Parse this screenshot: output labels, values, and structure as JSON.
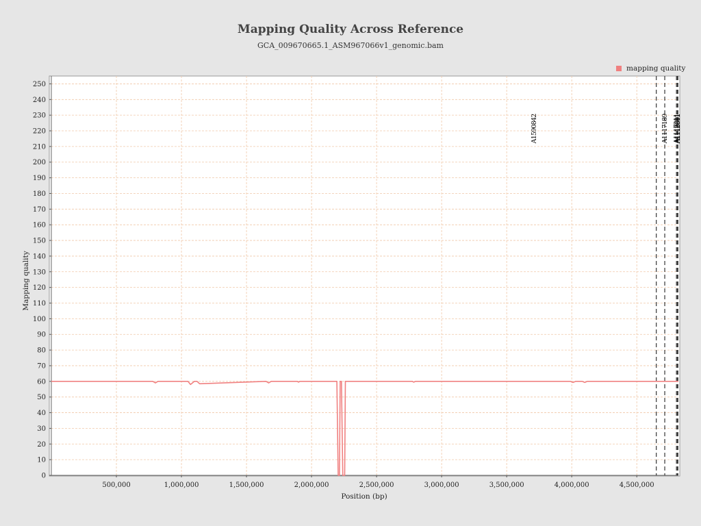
{
  "chart_data": {
    "type": "line",
    "title": "Mapping Quality Across Reference",
    "subtitle": "GCA_009670665.1_ASM967066v1_genomic.bam",
    "xlabel": "Position (bp)",
    "ylabel": "Mapping quality",
    "xlim": [
      0,
      4820000
    ],
    "ylim": [
      0,
      255
    ],
    "x_ticks": [
      {
        "value": 500000,
        "label": "500,000"
      },
      {
        "value": 1000000,
        "label": "1,000,000"
      },
      {
        "value": 1500000,
        "label": "1,500,000"
      },
      {
        "value": 2000000,
        "label": "2,000,000"
      },
      {
        "value": 2500000,
        "label": "2,500,000"
      },
      {
        "value": 3000000,
        "label": "3,000,000"
      },
      {
        "value": 3500000,
        "label": "3,500,000"
      },
      {
        "value": 4000000,
        "label": "4,000,000"
      },
      {
        "value": 4500000,
        "label": "4,500,000"
      }
    ],
    "y_ticks": [
      0,
      10,
      20,
      30,
      40,
      50,
      60,
      70,
      80,
      90,
      100,
      110,
      120,
      130,
      140,
      150,
      160,
      170,
      180,
      190,
      200,
      210,
      220,
      230,
      240,
      250
    ],
    "grid": true,
    "legend": {
      "position": "top-right",
      "entries": [
        {
          "label": "mapping quality",
          "color": "#f08080"
        }
      ]
    },
    "series": [
      {
        "name": "mapping quality",
        "color": "#f08080",
        "x": [
          0,
          780000,
          800000,
          820000,
          1050000,
          1070000,
          1100000,
          1120000,
          1140000,
          1650000,
          1670000,
          1690000,
          1890000,
          1900000,
          1910000,
          2190000,
          2195000,
          2205000,
          2215000,
          2220000,
          2230000,
          2240000,
          2245000,
          2255000,
          2260000,
          2775000,
          2785000,
          2800000,
          3990000,
          4010000,
          4030000,
          4080000,
          4100000,
          4120000,
          4820000
        ],
        "values": [
          60,
          60,
          59,
          60,
          60,
          58,
          60,
          60,
          58.5,
          60,
          59,
          60,
          60,
          59.5,
          60,
          60,
          60,
          0,
          0,
          60,
          60,
          0,
          0,
          0,
          60,
          60,
          59.5,
          60,
          60,
          59.3,
          60,
          60,
          59.3,
          60,
          60
        ]
      }
    ],
    "annotations": [
      {
        "x": 3710000,
        "label": "A1590842",
        "line": false
      },
      {
        "x": 4650000,
        "label": "",
        "line": true
      },
      {
        "x": 4715000,
        "label": "A1117189",
        "line": true
      },
      {
        "x": 4805000,
        "label": "A1117211",
        "line": true
      },
      {
        "x": 4812000,
        "label": "A1112881",
        "line": true
      },
      {
        "x": 4816000,
        "label": "A1112811",
        "line": true
      }
    ],
    "colors": {
      "background": "#e6e6e6",
      "plot_background": "#ffffff",
      "gridline": "#f0c8a8",
      "series": "#f08080"
    }
  }
}
